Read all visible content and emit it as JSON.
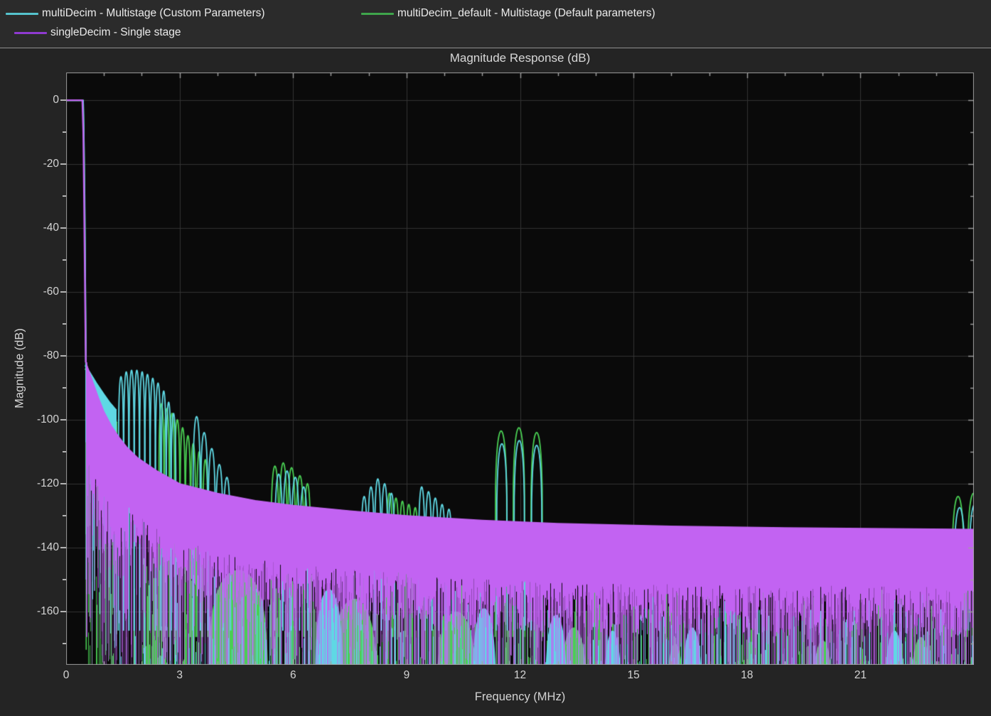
{
  "legend": {
    "items": [
      {
        "label": "multiDecim - Multistage (Custom Parameters)",
        "color": "#55c3cd"
      },
      {
        "label": "multiDecim_default - Multistage (Default parameters)",
        "color": "#3fa54b"
      },
      {
        "label": "singleDecim - Single stage",
        "color": "#8f3ad0"
      }
    ]
  },
  "chart_data": {
    "type": "line",
    "title": "Magnitude Response (dB)",
    "xlabel": "Frequency (MHz)",
    "ylabel": "Magnitude (dB)",
    "xlim": [
      0,
      24
    ],
    "ylim": [
      -176.7,
      8.7
    ],
    "xticks": [
      0,
      3,
      6,
      9,
      12,
      15,
      18,
      21
    ],
    "x_minor_step": 1,
    "yticks": [
      0,
      -20,
      -40,
      -60,
      -80,
      -100,
      -120,
      -140,
      -160
    ],
    "y_minor_step": 10,
    "grid": true,
    "legend_position": "top-left-outside",
    "colors": {
      "page_background": "#242424",
      "legend_background": "#2b2b2b",
      "plot_background": "#0a0a0a",
      "grid": "#323232",
      "axis_box": "#9f9f9f",
      "tick_label": "#d4d4d4",
      "title_text": "#d8d8d8"
    },
    "passband_db": 0,
    "passband_edge_mhz": 0.45,
    "series": [
      {
        "name": "multiDecim_default",
        "color": "#49cf53",
        "seed": 77,
        "edge_width": 2,
        "edge": [
          [
            0,
            0
          ],
          [
            0.45,
            0
          ],
          [
            0.47,
            -12
          ],
          [
            0.5,
            -45
          ],
          [
            0.525,
            -84
          ]
        ],
        "drops": [
          [
            0.531,
            -84,
            -172
          ]
        ],
        "combs": [
          {
            "x0": 0.5,
            "x1": 1.35,
            "env": [
              [
                0.5,
                -84
              ],
              [
                0.75,
                -89
              ],
              [
                1.0,
                -94
              ],
              [
                1.2,
                -98
              ],
              [
                1.35,
                -101
              ]
            ],
            "passes": [
              {
                "density": 0.3,
                "dmin": 40,
                "dmax": 80,
                "alpha": 0.8
              },
              {
                "density": 1,
                "dmin": 10,
                "dmax": 24,
                "alpha": 1
              }
            ]
          }
        ],
        "arch_base": -168,
        "arches": [
          [
            2.52,
            0.07,
            -95
          ],
          [
            2.66,
            0.07,
            -96.5
          ],
          [
            2.8,
            0.07,
            -98
          ],
          [
            2.94,
            0.07,
            -100
          ],
          [
            3.08,
            0.07,
            -102.5
          ],
          [
            3.22,
            0.07,
            -105
          ],
          [
            3.36,
            0.07,
            -107.5
          ],
          [
            3.52,
            0.07,
            -110
          ],
          [
            3.68,
            0.07,
            -112.5
          ],
          [
            5.52,
            0.11,
            -114.5
          ],
          [
            5.74,
            0.11,
            -113.5
          ],
          [
            5.96,
            0.11,
            -115
          ],
          [
            6.18,
            0.11,
            -117.5
          ],
          [
            6.38,
            0.09,
            -120
          ],
          [
            8.55,
            0.085,
            -123
          ],
          [
            8.72,
            0.085,
            -124.5
          ],
          [
            8.89,
            0.085,
            -125.5
          ],
          [
            9.06,
            0.085,
            -126.5
          ],
          [
            9.23,
            0.085,
            -127.5
          ],
          [
            11.5,
            0.16,
            -103.5
          ],
          [
            11.97,
            0.16,
            -102.5
          ],
          [
            12.44,
            0.16,
            -104
          ],
          [
            23.58,
            0.17,
            -124
          ],
          [
            23.99,
            0.17,
            -123
          ]
        ],
        "lobes": [
          [
            4.55,
            0.8,
            -147
          ],
          [
            7.62,
            0.62,
            -156
          ],
          [
            10.32,
            0.55,
            -160
          ],
          [
            13.42,
            0.38,
            -165
          ],
          [
            16.1,
            0.25,
            -170
          ],
          [
            20.0,
            0.3,
            -169
          ],
          [
            22.6,
            0.3,
            -168
          ]
        ],
        "forests": [
          {
            "x0": 0.55,
            "x1": 2.0,
            "density": 0.18,
            "top_min": -145,
            "top_max": -176
          },
          {
            "x0": 2.0,
            "x1": 2.7,
            "density": 0.85,
            "top_min": -143,
            "top_max": -177
          },
          {
            "x0": 2.7,
            "x1": 24,
            "density": 0.42,
            "top_min": -148,
            "top_max": -177
          }
        ]
      },
      {
        "name": "multiDecim",
        "color": "#5fd8e4",
        "seed": 31,
        "edge_width": 2,
        "edge": [
          [
            0,
            0
          ],
          [
            0.45,
            0
          ],
          [
            0.465,
            -8
          ],
          [
            0.49,
            -30
          ],
          [
            0.51,
            -60
          ],
          [
            0.525,
            -83
          ]
        ],
        "drops": [
          [
            0.532,
            -83,
            -150
          ]
        ],
        "combs": [
          {
            "x0": 0.5,
            "x1": 1.33,
            "env": [
              [
                0.5,
                -83
              ],
              [
                0.62,
                -85
              ],
              [
                0.8,
                -88.5
              ],
              [
                1.0,
                -92
              ],
              [
                1.15,
                -94.5
              ],
              [
                1.33,
                -97
              ]
            ],
            "passes": [
              {
                "density": 0.35,
                "dmin": 40,
                "dmax": 80,
                "alpha": 0.8
              },
              {
                "density": 1,
                "dmin": 14,
                "dmax": 30,
                "alpha": 1
              }
            ]
          }
        ],
        "arch_base": -166,
        "arches": [
          [
            1.45,
            0.07,
            -86.5
          ],
          [
            1.59,
            0.07,
            -85
          ],
          [
            1.73,
            0.07,
            -84.5
          ],
          [
            1.87,
            0.07,
            -84.5
          ],
          [
            2.01,
            0.07,
            -85
          ],
          [
            2.15,
            0.07,
            -85.8
          ],
          [
            2.29,
            0.07,
            -87
          ],
          [
            2.43,
            0.07,
            -88.5
          ],
          [
            2.58,
            0.065,
            -91
          ],
          [
            2.71,
            0.065,
            -94.5
          ],
          [
            2.84,
            0.065,
            -98
          ],
          [
            3.45,
            0.1,
            -99
          ],
          [
            3.65,
            0.1,
            -104
          ],
          [
            3.85,
            0.1,
            -109
          ],
          [
            4.05,
            0.1,
            -114
          ],
          [
            4.25,
            0.1,
            -118
          ],
          [
            5.62,
            0.11,
            -117
          ],
          [
            5.84,
            0.11,
            -116
          ],
          [
            6.06,
            0.11,
            -118
          ],
          [
            6.28,
            0.11,
            -121
          ],
          [
            7.88,
            0.09,
            -124
          ],
          [
            8.06,
            0.09,
            -121
          ],
          [
            8.24,
            0.09,
            -118.5
          ],
          [
            8.42,
            0.09,
            -120
          ],
          [
            8.6,
            0.09,
            -123
          ],
          [
            9.4,
            0.09,
            -121
          ],
          [
            9.58,
            0.09,
            -122.5
          ],
          [
            9.76,
            0.09,
            -124.5
          ],
          [
            9.94,
            0.09,
            -126.5
          ],
          [
            10.12,
            0.09,
            -128
          ],
          [
            11.52,
            0.145,
            -107.5
          ],
          [
            11.98,
            0.145,
            -106.5
          ],
          [
            12.44,
            0.145,
            -108
          ],
          [
            23.62,
            0.16,
            -127.5
          ],
          [
            24.02,
            0.16,
            -126.5
          ]
        ],
        "lobes": [
          [
            6.95,
            0.38,
            -153
          ],
          [
            11.05,
            0.33,
            -159
          ],
          [
            12.95,
            0.3,
            -161
          ],
          [
            14.45,
            0.25,
            -166
          ],
          [
            16.55,
            0.28,
            -165
          ],
          [
            21.9,
            0.28,
            -166
          ]
        ],
        "forests": [
          {
            "x0": 1.35,
            "x1": 4.4,
            "density": 0.25,
            "top_min": -148,
            "top_max": -176
          },
          {
            "x0": 4.4,
            "x1": 24,
            "density": 0.3,
            "top_min": -152,
            "top_max": -176
          }
        ]
      },
      {
        "name": "singleDecim",
        "color": "#c263f2",
        "seed": 12,
        "edge_width": 2.4,
        "edge": [
          [
            0,
            0
          ],
          [
            0.43,
            0
          ],
          [
            0.455,
            -10
          ],
          [
            0.475,
            -30
          ],
          [
            0.5,
            -60
          ],
          [
            0.52,
            -82
          ]
        ],
        "drops": [
          [
            0.545,
            -82,
            -168
          ]
        ],
        "combs": [
          {
            "x0": 0.52,
            "x1": 1.6,
            "env": [
              [
                0.52,
                -82
              ],
              [
                0.7,
                -88
              ],
              [
                0.85,
                -93
              ],
              [
                1.0,
                -97.5
              ],
              [
                1.2,
                -102
              ],
              [
                1.4,
                -105.5
              ],
              [
                1.6,
                -108.5
              ]
            ],
            "passes": [
              {
                "density": 0.3,
                "dmin": 70,
                "dmax": 100,
                "alpha": 0.5
              },
              {
                "density": 0.6,
                "dmin": 40,
                "dmax": 80,
                "alpha": 0.72
              },
              {
                "density": 1,
                "dmin": 26,
                "dmax": 44,
                "alpha": 1
              }
            ]
          },
          {
            "x0": 1.6,
            "x1": 24,
            "env": [
              [
                1.6,
                -108.5
              ],
              [
                1.9,
                -112
              ],
              [
                2.4,
                -116
              ],
              [
                3.0,
                -120
              ],
              [
                4.0,
                -123
              ],
              [
                5.0,
                -125.3
              ],
              [
                6.0,
                -126.8
              ],
              [
                7.5,
                -128.5
              ],
              [
                9.0,
                -130
              ],
              [
                11,
                -131.5
              ],
              [
                13,
                -132.5
              ],
              [
                16,
                -133.3
              ],
              [
                19,
                -133.8
              ],
              [
                24,
                -134.3
              ]
            ],
            "passes": [
              {
                "density": 0.27,
                "dmin": 55,
                "dmax": 100,
                "alpha": 0.5,
                "mod_period": 2.3,
                "mod_min": 0.22
              },
              {
                "density": 0.55,
                "dmin": 30,
                "dmax": 72,
                "alpha": 0.72
              },
              {
                "density": 1,
                "dmin": 18,
                "dmax": 34,
                "alpha": 1
              }
            ]
          }
        ]
      }
    ]
  }
}
